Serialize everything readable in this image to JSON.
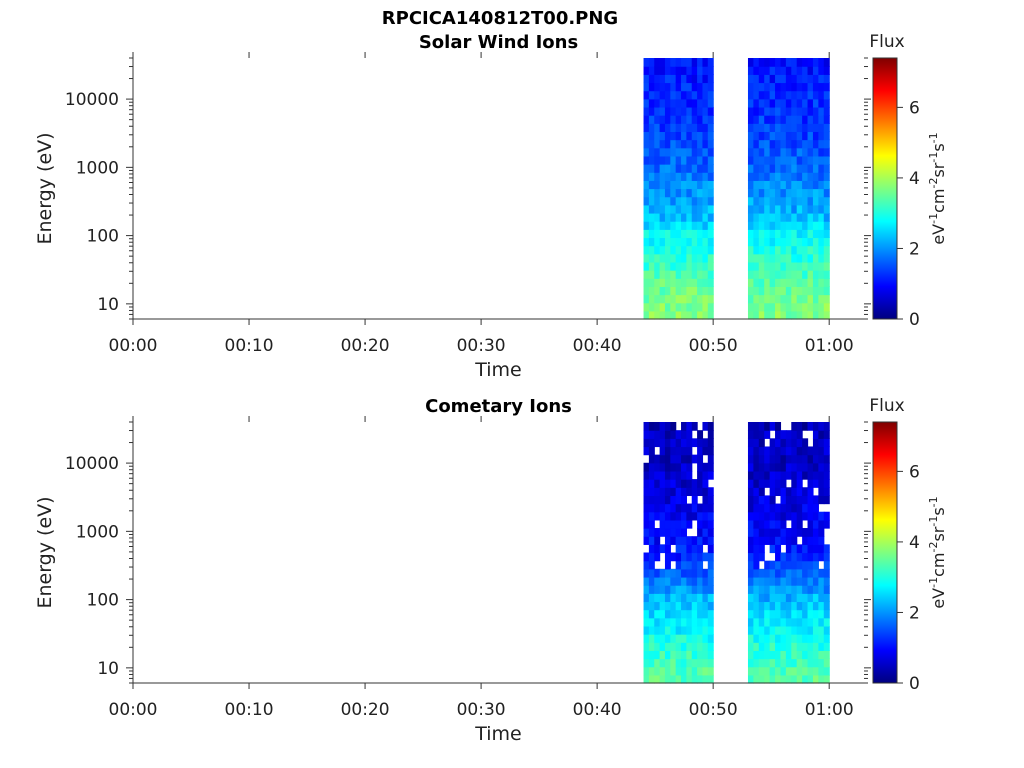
{
  "figure_title": "RPCICA140812T00.PNG",
  "colors": {
    "colormap": [
      "#00007f",
      "#0000ff",
      "#007fff",
      "#00ffff",
      "#7fff7f",
      "#ffff00",
      "#ff7f00",
      "#ff0000",
      "#7f0000"
    ]
  },
  "chart_data": [
    {
      "type": "heatmap",
      "title": "Solar Wind Ions",
      "xlabel": "Time",
      "ylabel": "Energy (eV)",
      "y_scale": "log",
      "xlim": [
        "00:00",
        "01:03"
      ],
      "ylim": [
        6,
        40000
      ],
      "x_ticks": [
        "00:00",
        "00:10",
        "00:20",
        "00:30",
        "00:40",
        "00:50",
        "01:00"
      ],
      "y_ticks": [
        10,
        100,
        1000,
        10000
      ],
      "colorbar": {
        "title": "Flux",
        "label": "eV-1cm-2sr-1s-1",
        "range": [
          0,
          7.4
        ],
        "ticks": [
          0,
          2,
          4,
          6
        ]
      },
      "data_intervals": [
        [
          "00:44",
          "00:50"
        ],
        [
          "00:53",
          "01:00"
        ]
      ],
      "energy_profile": [
        {
          "energy": 8,
          "flux": 3.7
        },
        {
          "energy": 18,
          "flux": 3.5
        },
        {
          "energy": 40,
          "flux": 3.1
        },
        {
          "energy": 100,
          "flux": 2.8
        },
        {
          "energy": 180,
          "flux": 2.3
        },
        {
          "energy": 400,
          "flux": 2.0
        },
        {
          "energy": 1000,
          "flux": 1.7
        },
        {
          "energy": 3000,
          "flux": 1.4
        },
        {
          "energy": 10000,
          "flux": 1.2
        },
        {
          "energy": 40000,
          "flux": 1.0
        }
      ]
    },
    {
      "type": "heatmap",
      "title": "Cometary Ions",
      "xlabel": "Time",
      "ylabel": "Energy (eV)",
      "y_scale": "log",
      "xlim": [
        "00:00",
        "01:03"
      ],
      "ylim": [
        6,
        40000
      ],
      "x_ticks": [
        "00:00",
        "00:10",
        "00:20",
        "00:30",
        "00:40",
        "00:50",
        "01:00"
      ],
      "y_ticks": [
        10,
        100,
        1000,
        10000
      ],
      "colorbar": {
        "title": "Flux",
        "label": "eV-1cm-2sr-1s-1",
        "range": [
          0,
          7.4
        ],
        "ticks": [
          0,
          2,
          4,
          6
        ]
      },
      "data_intervals": [
        [
          "00:44",
          "00:50"
        ],
        [
          "00:53",
          "01:00"
        ]
      ],
      "energy_profile": [
        {
          "energy": 8,
          "flux": 3.4
        },
        {
          "energy": 18,
          "flux": 3.1
        },
        {
          "energy": 40,
          "flux": 2.7
        },
        {
          "energy": 100,
          "flux": 2.3
        },
        {
          "energy": 180,
          "flux": 1.8
        },
        {
          "energy": 400,
          "flux": 1.2
        },
        {
          "energy": 1000,
          "flux": 0.9
        },
        {
          "energy": 3000,
          "flux": 0.7
        },
        {
          "energy": 10000,
          "flux": 0.5
        },
        {
          "energy": 40000,
          "flux": 0.4
        }
      ]
    }
  ]
}
